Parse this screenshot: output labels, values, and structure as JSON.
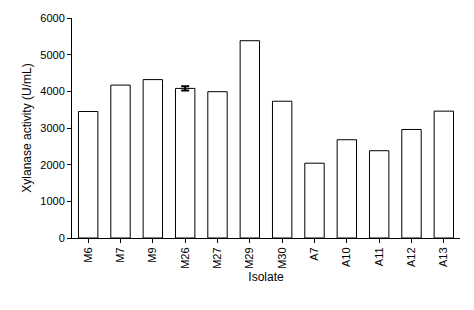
{
  "chart_data": {
    "type": "bar",
    "x_label": "Isolate",
    "y_label": "Xylanase activity (U/mL)",
    "categories": [
      "M6",
      "M7",
      "M9",
      "M26",
      "M27",
      "M29",
      "M30",
      "A7",
      "A10",
      "A11",
      "A12",
      "A13"
    ],
    "values": [
      3450,
      4170,
      4320,
      4080,
      3990,
      5380,
      3730,
      2040,
      2680,
      2380,
      2960,
      3460
    ],
    "errors": [
      null,
      null,
      null,
      60,
      null,
      null,
      null,
      null,
      null,
      null,
      null,
      null
    ],
    "color": "#ffffff",
    "ylim": [
      0,
      6000
    ],
    "yticks": [
      0,
      1000,
      2000,
      3000,
      4000,
      5000,
      6000
    ],
    "grid": false
  }
}
